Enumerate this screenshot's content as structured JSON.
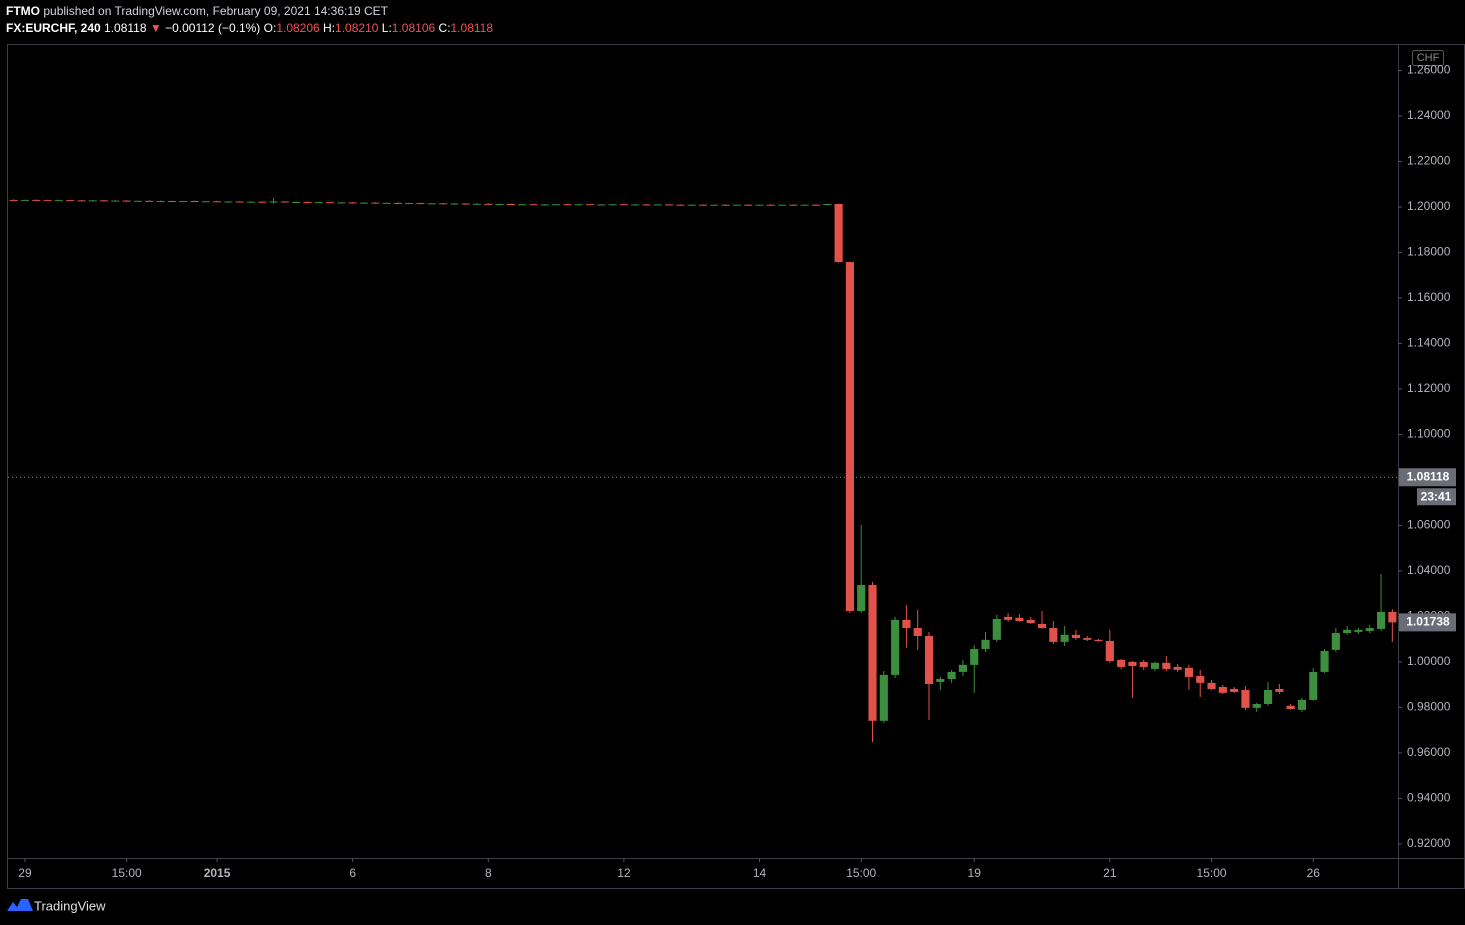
{
  "chart_data": {
    "type": "candlestick",
    "header": {
      "author": "FTMO",
      "published": "published on TradingView.com, February 09, 2021 14:36:19 CET",
      "symbol": "FX:EURCHF, 240",
      "last": "1.08118",
      "arrow": "▼",
      "change": "−0.00112 (−0.1%)",
      "fields": [
        {
          "label": "O:",
          "value": "1.08206"
        },
        {
          "label": "H:",
          "value": "1.08210"
        },
        {
          "label": "L:",
          "value": "1.08106"
        },
        {
          "label": "C:",
          "value": "1.08118"
        }
      ]
    },
    "currency": "CHF",
    "last_price": 1.08118,
    "countdown": "23:41",
    "brand": "TradingView",
    "up_color": "#3b8f3e",
    "down_color": "#e0524a",
    "ylim": [
      0.9138,
      1.2712
    ],
    "yticks": [
      {
        "value": 0.92,
        "label": "0.92000"
      },
      {
        "value": 0.94,
        "label": "0.94000"
      },
      {
        "value": 0.96,
        "label": "0.96000"
      },
      {
        "value": 0.98,
        "label": "0.98000"
      },
      {
        "value": 1.0,
        "label": "1.00000"
      },
      {
        "value": 1.02,
        "label": "1.02000"
      },
      {
        "value": 1.04,
        "label": "1.04000"
      },
      {
        "value": 1.06,
        "label": "1.06000"
      },
      {
        "value": 1.08,
        "label": "1.08000"
      },
      {
        "value": 1.1,
        "label": "1.10000"
      },
      {
        "value": 1.12,
        "label": "1.12000"
      },
      {
        "value": 1.14,
        "label": "1.14000"
      },
      {
        "value": 1.16,
        "label": "1.16000"
      },
      {
        "value": 1.18,
        "label": "1.18000"
      },
      {
        "value": 1.2,
        "label": "1.20000"
      },
      {
        "value": 1.22,
        "label": "1.22000"
      },
      {
        "value": 1.24,
        "label": "1.24000"
      },
      {
        "value": 1.26,
        "label": "1.26000"
      }
    ],
    "categories": [
      null,
      "29",
      null,
      null,
      null,
      null,
      null,
      null,
      null,
      null,
      "15:00",
      null,
      null,
      null,
      null,
      null,
      null,
      null,
      "2015",
      null,
      null,
      null,
      null,
      null,
      null,
      null,
      null,
      null,
      null,
      null,
      "6",
      null,
      null,
      null,
      null,
      null,
      null,
      null,
      null,
      null,
      null,
      null,
      "8",
      null,
      null,
      null,
      null,
      null,
      null,
      null,
      null,
      null,
      null,
      null,
      "12",
      null,
      null,
      null,
      null,
      null,
      null,
      null,
      null,
      null,
      null,
      null,
      "14",
      null,
      null,
      null,
      null,
      null,
      null,
      null,
      null,
      "15:00",
      null,
      null,
      null,
      null,
      null,
      null,
      null,
      null,
      null,
      "19",
      null,
      null,
      null,
      null,
      null,
      null,
      null,
      null,
      null,
      null,
      null,
      "21",
      null,
      null,
      null,
      null,
      null,
      null,
      null,
      null,
      "15:00",
      null,
      null,
      null,
      null,
      null,
      null,
      null,
      null,
      "26",
      null,
      null,
      null,
      null,
      null,
      null,
      null
    ],
    "ohlc": [
      [
        1.2031,
        1.2033,
        1.2028,
        1.203
      ],
      [
        1.203,
        1.2032,
        1.2028,
        1.2031
      ],
      [
        1.2031,
        1.2033,
        1.2029,
        1.203
      ],
      [
        1.203,
        1.2032,
        1.2027,
        1.2029
      ],
      [
        1.2029,
        1.2032,
        1.2027,
        1.203
      ],
      [
        1.203,
        1.2032,
        1.2028,
        1.2029
      ],
      [
        1.2029,
        1.2031,
        1.2027,
        1.2028
      ],
      [
        1.2028,
        1.2031,
        1.2026,
        1.2029
      ],
      [
        1.2029,
        1.2031,
        1.2026,
        1.2027
      ],
      [
        1.2027,
        1.203,
        1.2025,
        1.2028
      ],
      [
        1.2028,
        1.203,
        1.2025,
        1.2026
      ],
      [
        1.2026,
        1.2028,
        1.2024,
        1.2027
      ],
      [
        1.2027,
        1.2029,
        1.2024,
        1.2025
      ],
      [
        1.2025,
        1.2028,
        1.2023,
        1.2026
      ],
      [
        1.2026,
        1.2028,
        1.2024,
        1.2025
      ],
      [
        1.2025,
        1.2027,
        1.2023,
        1.2026
      ],
      [
        1.2026,
        1.2028,
        1.2023,
        1.2024
      ],
      [
        1.2024,
        1.2027,
        1.2022,
        1.2025
      ],
      [
        1.2025,
        1.2027,
        1.2022,
        1.2023
      ],
      [
        1.2023,
        1.2026,
        1.2021,
        1.2024
      ],
      [
        1.2024,
        1.2026,
        1.2021,
        1.2022
      ],
      [
        1.2022,
        1.2025,
        1.202,
        1.2023
      ],
      [
        1.2023,
        1.2025,
        1.202,
        1.2021
      ],
      [
        1.2021,
        1.204,
        1.2015,
        1.2024
      ],
      [
        1.2024,
        1.2026,
        1.202,
        1.2021
      ],
      [
        1.2021,
        1.2024,
        1.2019,
        1.2022
      ],
      [
        1.2022,
        1.2024,
        1.2019,
        1.202
      ],
      [
        1.202,
        1.2023,
        1.2018,
        1.2021
      ],
      [
        1.2021,
        1.2023,
        1.2018,
        1.2019
      ],
      [
        1.2019,
        1.2022,
        1.2017,
        1.202
      ],
      [
        1.202,
        1.2022,
        1.2017,
        1.2018
      ],
      [
        1.2018,
        1.2021,
        1.2016,
        1.2019
      ],
      [
        1.2019,
        1.2021,
        1.2016,
        1.2017
      ],
      [
        1.2017,
        1.202,
        1.2015,
        1.2018
      ],
      [
        1.2018,
        1.202,
        1.2015,
        1.2016
      ],
      [
        1.2016,
        1.2019,
        1.2014,
        1.2017
      ],
      [
        1.2017,
        1.2019,
        1.2014,
        1.2015
      ],
      [
        1.2015,
        1.2018,
        1.2013,
        1.2016
      ],
      [
        1.2016,
        1.2018,
        1.2013,
        1.2014
      ],
      [
        1.2014,
        1.2017,
        1.2012,
        1.2015
      ],
      [
        1.2015,
        1.2017,
        1.2012,
        1.2013
      ],
      [
        1.2013,
        1.2016,
        1.2011,
        1.2014
      ],
      [
        1.2014,
        1.2016,
        1.2011,
        1.2012
      ],
      [
        1.2012,
        1.2015,
        1.201,
        1.2013
      ],
      [
        1.2013,
        1.2015,
        1.201,
        1.2011
      ],
      [
        1.2011,
        1.2014,
        1.2009,
        1.2012
      ],
      [
        1.2012,
        1.2014,
        1.2009,
        1.201
      ],
      [
        1.201,
        1.2013,
        1.2008,
        1.2011
      ],
      [
        1.2011,
        1.2013,
        1.2008,
        1.2012
      ],
      [
        1.2012,
        1.2014,
        1.2009,
        1.2011
      ],
      [
        1.2011,
        1.2014,
        1.2009,
        1.2012
      ],
      [
        1.2012,
        1.2014,
        1.2009,
        1.201
      ],
      [
        1.201,
        1.2013,
        1.2008,
        1.2011
      ],
      [
        1.2011,
        1.2013,
        1.2008,
        1.2012
      ],
      [
        1.2012,
        1.2014,
        1.2009,
        1.201
      ],
      [
        1.201,
        1.2013,
        1.2008,
        1.2011
      ],
      [
        1.2011,
        1.2013,
        1.2008,
        1.201
      ],
      [
        1.201,
        1.2012,
        1.2007,
        1.2011
      ],
      [
        1.2011,
        1.2013,
        1.2008,
        1.201
      ],
      [
        1.201,
        1.2012,
        1.2007,
        1.2009
      ],
      [
        1.2009,
        1.2012,
        1.2007,
        1.201
      ],
      [
        1.201,
        1.2012,
        1.2007,
        1.2009
      ],
      [
        1.2009,
        1.2011,
        1.2006,
        1.201
      ],
      [
        1.201,
        1.2012,
        1.2007,
        1.2009
      ],
      [
        1.2009,
        1.2011,
        1.2006,
        1.201
      ],
      [
        1.201,
        1.2012,
        1.2007,
        1.2009
      ],
      [
        1.2009,
        1.2011,
        1.2006,
        1.201
      ],
      [
        1.201,
        1.2012,
        1.2007,
        1.2009
      ],
      [
        1.2009,
        1.2011,
        1.2006,
        1.201
      ],
      [
        1.201,
        1.2012,
        1.2007,
        1.2009
      ],
      [
        1.2009,
        1.2011,
        1.2006,
        1.201
      ],
      [
        1.201,
        1.2012,
        1.2007,
        1.2009
      ],
      [
        1.2009,
        1.2012,
        1.2006,
        1.2013
      ],
      [
        1.2013,
        1.2015,
        1.1755,
        1.1758
      ],
      [
        1.1758,
        1.176,
        1.0215,
        1.0224
      ],
      [
        1.0224,
        1.0602,
        1.0215,
        1.0338
      ],
      [
        1.0338,
        1.0352,
        0.9648,
        0.9741
      ],
      [
        0.9741,
        0.996,
        0.9732,
        0.9943
      ],
      [
        0.9943,
        1.0198,
        0.993,
        1.0185
      ],
      [
        1.0185,
        1.0251,
        1.0062,
        1.0149
      ],
      [
        1.0149,
        1.0229,
        1.0053,
        1.0114
      ],
      [
        1.0114,
        1.0132,
        0.9745,
        0.9903
      ],
      [
        0.9912,
        0.9934,
        0.9877,
        0.9925
      ],
      [
        0.9925,
        0.9965,
        0.9908,
        0.9956
      ],
      [
        0.9956,
        1.0009,
        0.9938,
        0.9987
      ],
      [
        0.9987,
        1.0075,
        0.9864,
        1.0057
      ],
      [
        1.0057,
        1.0132,
        1.0044,
        1.0097
      ],
      [
        1.0097,
        1.0207,
        1.0088,
        1.0189
      ],
      [
        1.0198,
        1.0215,
        1.0176,
        1.0185
      ],
      [
        1.0194,
        1.0211,
        1.0176,
        1.018
      ],
      [
        1.0185,
        1.0198,
        1.0167,
        1.0171
      ],
      [
        1.0167,
        1.0224,
        1.0145,
        1.0149
      ],
      [
        1.0149,
        1.018,
        1.0079,
        1.0088
      ],
      [
        1.0088,
        1.0158,
        1.007,
        1.0119
      ],
      [
        1.0119,
        1.0141,
        1.0097,
        1.0105
      ],
      [
        1.0105,
        1.0114,
        1.0092,
        1.0097
      ],
      [
        1.0097,
        1.0101,
        1.0088,
        1.0092
      ],
      [
        1.0092,
        1.0141,
        0.9996,
        1.0004
      ],
      [
        1.0009,
        1.0013,
        0.9969,
        0.9978
      ],
      [
        1.0,
        1.0004,
        0.9842,
        0.9982
      ],
      [
        1.0,
        1.0009,
        0.9965,
        0.9978
      ],
      [
        0.9969,
        1.0,
        0.996,
        0.9996
      ],
      [
        0.9996,
        1.0026,
        0.996,
        0.9969
      ],
      [
        0.9978,
        0.9991,
        0.9956,
        0.9965
      ],
      [
        0.9974,
        0.9987,
        0.9877,
        0.9934
      ],
      [
        0.9938,
        0.9965,
        0.9846,
        0.9908
      ],
      [
        0.9908,
        0.9921,
        0.9877,
        0.9881
      ],
      [
        0.989,
        0.9899,
        0.9859,
        0.9864
      ],
      [
        0.9881,
        0.989,
        0.9864,
        0.9868
      ],
      [
        0.9877,
        0.9894,
        0.9789,
        0.9798
      ],
      [
        0.9798,
        0.982,
        0.978,
        0.9815
      ],
      [
        0.9815,
        0.9912,
        0.9807,
        0.9877
      ],
      [
        0.9881,
        0.9903,
        0.9859,
        0.9868
      ],
      [
        0.9807,
        0.9815,
        0.9789,
        0.9793
      ],
      [
        0.9789,
        0.9842,
        0.978,
        0.9833
      ],
      [
        0.9833,
        0.9974,
        0.9829,
        0.9956
      ],
      [
        0.9956,
        1.0057,
        0.9951,
        1.0048
      ],
      [
        1.0053,
        1.0149,
        1.0044,
        1.0127
      ],
      [
        1.0127,
        1.0158,
        1.0119,
        1.0141
      ],
      [
        1.0132,
        1.0149,
        1.0123,
        1.0141
      ],
      [
        1.0136,
        1.0163,
        1.0127,
        1.0149
      ],
      [
        1.0145,
        1.0387,
        1.0136,
        1.022
      ],
      [
        1.022,
        1.0233,
        1.0088,
        1.01738
      ]
    ]
  }
}
